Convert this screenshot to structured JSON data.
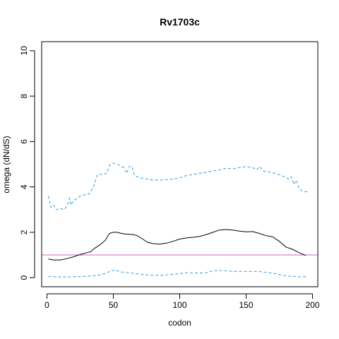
{
  "chart_data": {
    "type": "line",
    "title": "Rv1703c",
    "xlabel": "codon",
    "ylabel": "omega (dN/dS)",
    "xlim": [
      -4,
      204
    ],
    "ylim": [
      -0.4,
      10.4
    ],
    "xticks": [
      "0",
      "50",
      "100",
      "150",
      "200"
    ],
    "yticks": [
      "0",
      "2",
      "4",
      "6",
      "8",
      "10"
    ],
    "reference_line": {
      "y": 1,
      "color": "#cc66cc"
    },
    "series": [
      {
        "role": "median",
        "color": "#000000",
        "dash": "solid",
        "points": [
          [
            1,
            0.82
          ],
          [
            5,
            0.78
          ],
          [
            10,
            0.78
          ],
          [
            15,
            0.84
          ],
          [
            20,
            0.92
          ],
          [
            25,
            1.02
          ],
          [
            30,
            1.1
          ],
          [
            33,
            1.15
          ],
          [
            36,
            1.3
          ],
          [
            40,
            1.45
          ],
          [
            44,
            1.65
          ],
          [
            47,
            1.95
          ],
          [
            50,
            2.0
          ],
          [
            53,
            2.0
          ],
          [
            56,
            1.95
          ],
          [
            60,
            1.92
          ],
          [
            65,
            1.9
          ],
          [
            68,
            1.85
          ],
          [
            72,
            1.7
          ],
          [
            76,
            1.55
          ],
          [
            80,
            1.5
          ],
          [
            85,
            1.48
          ],
          [
            90,
            1.52
          ],
          [
            95,
            1.6
          ],
          [
            100,
            1.7
          ],
          [
            105,
            1.75
          ],
          [
            110,
            1.78
          ],
          [
            115,
            1.82
          ],
          [
            120,
            1.9
          ],
          [
            125,
            2.0
          ],
          [
            130,
            2.1
          ],
          [
            135,
            2.12
          ],
          [
            140,
            2.1
          ],
          [
            145,
            2.05
          ],
          [
            150,
            2.02
          ],
          [
            155,
            2.03
          ],
          [
            160,
            1.95
          ],
          [
            165,
            1.85
          ],
          [
            170,
            1.8
          ],
          [
            175,
            1.6
          ],
          [
            180,
            1.35
          ],
          [
            185,
            1.25
          ],
          [
            190,
            1.1
          ],
          [
            195,
            0.98
          ]
        ]
      },
      {
        "role": "upper",
        "color": "#3399dd",
        "dash": "dashed",
        "points": [
          [
            1,
            3.6
          ],
          [
            3,
            3.1
          ],
          [
            5,
            3.2
          ],
          [
            7,
            3.0
          ],
          [
            10,
            3.05
          ],
          [
            13,
            3.0
          ],
          [
            15,
            3.15
          ],
          [
            17,
            3.5
          ],
          [
            18,
            3.2
          ],
          [
            20,
            3.4
          ],
          [
            23,
            3.5
          ],
          [
            25,
            3.6
          ],
          [
            28,
            3.65
          ],
          [
            32,
            3.7
          ],
          [
            35,
            4.0
          ],
          [
            38,
            4.55
          ],
          [
            42,
            4.55
          ],
          [
            45,
            4.6
          ],
          [
            47,
            4.95
          ],
          [
            50,
            5.05
          ],
          [
            53,
            5.0
          ],
          [
            56,
            4.9
          ],
          [
            58,
            4.85
          ],
          [
            60,
            4.6
          ],
          [
            62,
            4.9
          ],
          [
            64,
            4.9
          ],
          [
            66,
            4.5
          ],
          [
            70,
            4.4
          ],
          [
            75,
            4.35
          ],
          [
            80,
            4.3
          ],
          [
            85,
            4.3
          ],
          [
            90,
            4.32
          ],
          [
            95,
            4.35
          ],
          [
            100,
            4.4
          ],
          [
            105,
            4.5
          ],
          [
            110,
            4.55
          ],
          [
            115,
            4.6
          ],
          [
            120,
            4.65
          ],
          [
            125,
            4.7
          ],
          [
            130,
            4.75
          ],
          [
            135,
            4.82
          ],
          [
            140,
            4.8
          ],
          [
            145,
            4.85
          ],
          [
            150,
            4.9
          ],
          [
            155,
            4.85
          ],
          [
            158,
            4.75
          ],
          [
            160,
            4.9
          ],
          [
            163,
            4.7
          ],
          [
            168,
            4.65
          ],
          [
            172,
            4.6
          ],
          [
            177,
            4.5
          ],
          [
            182,
            4.35
          ],
          [
            184,
            4.45
          ],
          [
            186,
            4.1
          ],
          [
            188,
            4.3
          ],
          [
            190,
            3.9
          ],
          [
            193,
            3.8
          ],
          [
            196,
            3.78
          ]
        ]
      },
      {
        "role": "lower",
        "color": "#3399dd",
        "dash": "dashed",
        "points": [
          [
            1,
            0.05
          ],
          [
            10,
            0.03
          ],
          [
            20,
            0.04
          ],
          [
            30,
            0.06
          ],
          [
            40,
            0.12
          ],
          [
            45,
            0.2
          ],
          [
            48,
            0.32
          ],
          [
            52,
            0.32
          ],
          [
            56,
            0.25
          ],
          [
            62,
            0.22
          ],
          [
            70,
            0.15
          ],
          [
            80,
            0.1
          ],
          [
            90,
            0.12
          ],
          [
            100,
            0.18
          ],
          [
            105,
            0.22
          ],
          [
            115,
            0.2
          ],
          [
            120,
            0.22
          ],
          [
            125,
            0.3
          ],
          [
            130,
            0.32
          ],
          [
            140,
            0.28
          ],
          [
            150,
            0.28
          ],
          [
            160,
            0.27
          ],
          [
            170,
            0.2
          ],
          [
            180,
            0.08
          ],
          [
            190,
            0.04
          ],
          [
            196,
            0.04
          ]
        ]
      }
    ]
  }
}
